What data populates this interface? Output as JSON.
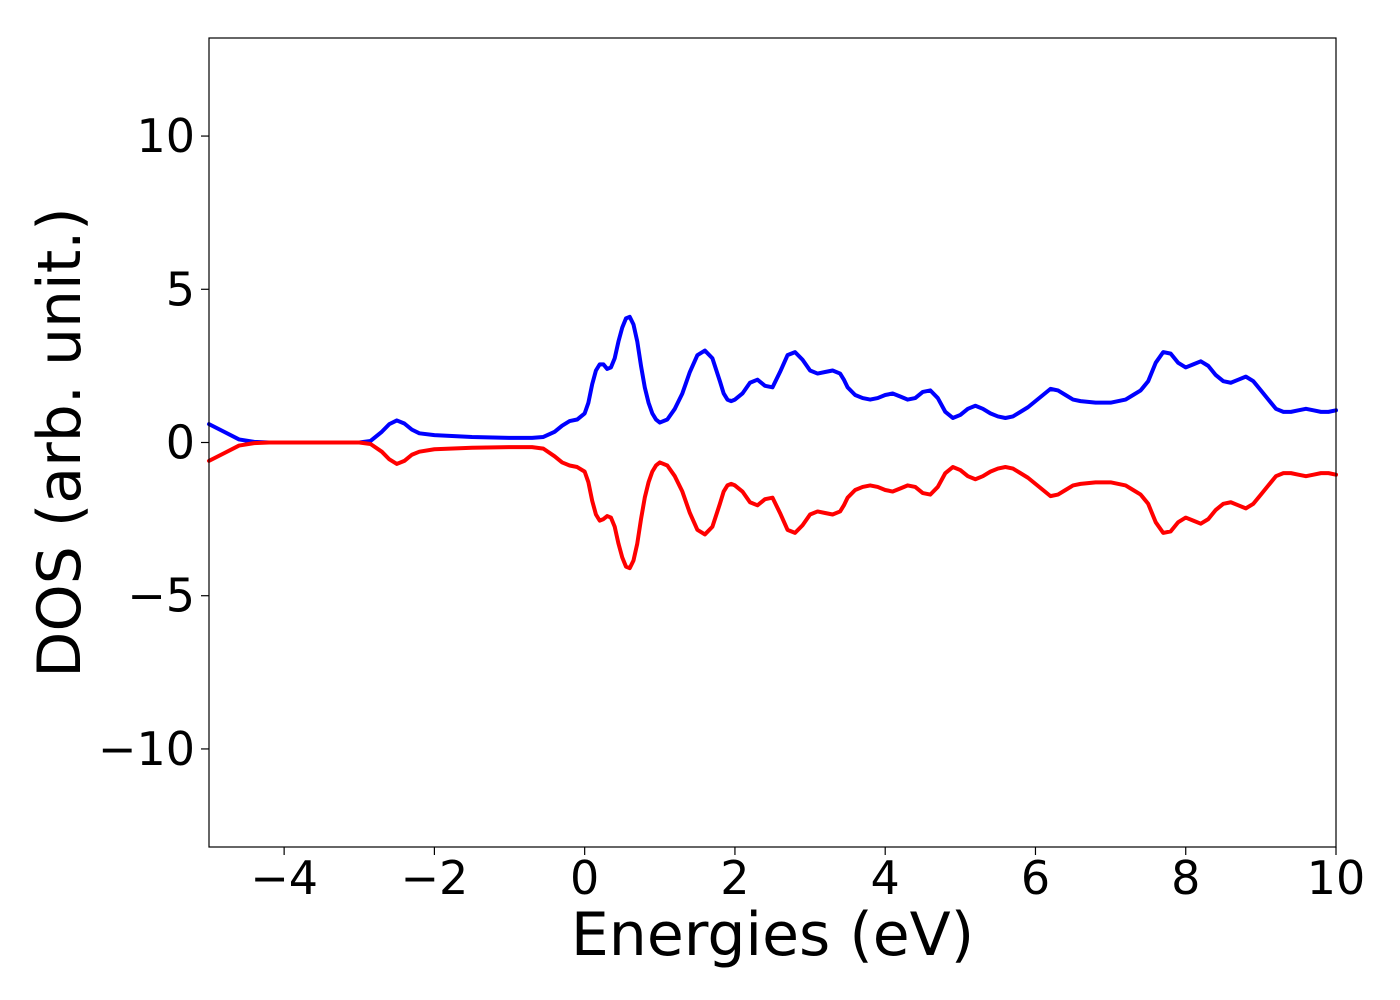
{
  "chart_data": {
    "type": "line",
    "title": "",
    "xlabel": "Energies (eV)",
    "ylabel": "DOS (arb. unit.)",
    "xlim": [
      -5,
      10
    ],
    "ylim": [
      -13.2,
      13.2
    ],
    "xticks": [
      -4,
      -2,
      0,
      2,
      4,
      6,
      8,
      10
    ],
    "xtick_labels": [
      "−4",
      "−2",
      "0",
      "2",
      "4",
      "6",
      "8",
      "10"
    ],
    "yticks": [
      -10,
      -5,
      0,
      5,
      10
    ],
    "ytick_labels": [
      "−10",
      "−5",
      "0",
      "5",
      "10"
    ],
    "grid": false,
    "legend": "none",
    "series": [
      {
        "color": "#0000ff",
        "x": [
          -5.0,
          -4.8,
          -4.6,
          -4.4,
          -4.2,
          -4.0,
          -3.5,
          -3.0,
          -2.85,
          -2.7,
          -2.6,
          -2.5,
          -2.4,
          -2.3,
          -2.2,
          -2.0,
          -1.5,
          -1.0,
          -0.7,
          -0.55,
          -0.4,
          -0.3,
          -0.2,
          -0.1,
          0.0,
          0.05,
          0.1,
          0.15,
          0.2,
          0.25,
          0.3,
          0.35,
          0.4,
          0.45,
          0.5,
          0.55,
          0.6,
          0.65,
          0.7,
          0.75,
          0.8,
          0.85,
          0.9,
          0.95,
          1.0,
          1.1,
          1.2,
          1.3,
          1.4,
          1.5,
          1.6,
          1.7,
          1.8,
          1.85,
          1.9,
          1.95,
          2.0,
          2.1,
          2.2,
          2.3,
          2.4,
          2.5,
          2.6,
          2.7,
          2.8,
          2.9,
          3.0,
          3.1,
          3.2,
          3.3,
          3.4,
          3.45,
          3.5,
          3.6,
          3.7,
          3.8,
          3.9,
          4.0,
          4.1,
          4.2,
          4.3,
          4.4,
          4.5,
          4.6,
          4.7,
          4.8,
          4.9,
          5.0,
          5.1,
          5.2,
          5.3,
          5.4,
          5.5,
          5.6,
          5.7,
          5.8,
          5.9,
          6.0,
          6.1,
          6.2,
          6.3,
          6.4,
          6.5,
          6.6,
          6.8,
          7.0,
          7.2,
          7.3,
          7.4,
          7.5,
          7.6,
          7.7,
          7.8,
          7.9,
          8.0,
          8.1,
          8.2,
          8.3,
          8.4,
          8.5,
          8.6,
          8.7,
          8.8,
          8.9,
          9.0,
          9.1,
          9.2,
          9.3,
          9.4,
          9.5,
          9.6,
          9.7,
          9.8,
          9.9,
          10.0
        ],
        "y": [
          0.6,
          0.35,
          0.1,
          0.02,
          0.0,
          0.0,
          0.0,
          0.0,
          0.05,
          0.35,
          0.6,
          0.72,
          0.62,
          0.42,
          0.3,
          0.24,
          0.18,
          0.15,
          0.15,
          0.18,
          0.35,
          0.55,
          0.7,
          0.75,
          0.95,
          1.3,
          1.9,
          2.35,
          2.55,
          2.55,
          2.4,
          2.45,
          2.75,
          3.3,
          3.75,
          4.05,
          4.1,
          3.85,
          3.3,
          2.5,
          1.8,
          1.3,
          0.95,
          0.75,
          0.65,
          0.75,
          1.1,
          1.6,
          2.3,
          2.85,
          3.0,
          2.75,
          2.0,
          1.6,
          1.4,
          1.35,
          1.4,
          1.6,
          1.95,
          2.05,
          1.85,
          1.8,
          2.3,
          2.85,
          2.95,
          2.7,
          2.35,
          2.25,
          2.3,
          2.35,
          2.25,
          2.05,
          1.8,
          1.55,
          1.45,
          1.4,
          1.45,
          1.55,
          1.6,
          1.5,
          1.4,
          1.45,
          1.65,
          1.7,
          1.45,
          1.0,
          0.8,
          0.9,
          1.1,
          1.2,
          1.1,
          0.95,
          0.85,
          0.8,
          0.85,
          1.0,
          1.15,
          1.35,
          1.55,
          1.75,
          1.7,
          1.55,
          1.4,
          1.35,
          1.3,
          1.3,
          1.4,
          1.55,
          1.7,
          2.0,
          2.6,
          2.95,
          2.9,
          2.6,
          2.45,
          2.55,
          2.65,
          2.5,
          2.2,
          2.0,
          1.95,
          2.05,
          2.15,
          2.0,
          1.7,
          1.4,
          1.1,
          1.0,
          1.0,
          1.05,
          1.1,
          1.05,
          1.0,
          1.0,
          1.05
        ]
      },
      {
        "color": "#ff0000",
        "x": [
          -5.0,
          -4.8,
          -4.6,
          -4.4,
          -4.2,
          -4.0,
          -3.5,
          -3.0,
          -2.85,
          -2.7,
          -2.6,
          -2.5,
          -2.4,
          -2.3,
          -2.2,
          -2.0,
          -1.5,
          -1.0,
          -0.7,
          -0.55,
          -0.4,
          -0.3,
          -0.2,
          -0.1,
          0.0,
          0.05,
          0.1,
          0.15,
          0.2,
          0.25,
          0.3,
          0.35,
          0.4,
          0.45,
          0.5,
          0.55,
          0.6,
          0.65,
          0.7,
          0.75,
          0.8,
          0.85,
          0.9,
          0.95,
          1.0,
          1.1,
          1.2,
          1.3,
          1.4,
          1.5,
          1.6,
          1.7,
          1.8,
          1.85,
          1.9,
          1.95,
          2.0,
          2.1,
          2.2,
          2.3,
          2.4,
          2.5,
          2.6,
          2.7,
          2.8,
          2.9,
          3.0,
          3.1,
          3.2,
          3.3,
          3.4,
          3.45,
          3.5,
          3.6,
          3.7,
          3.8,
          3.9,
          4.0,
          4.1,
          4.2,
          4.3,
          4.4,
          4.5,
          4.6,
          4.7,
          4.8,
          4.9,
          5.0,
          5.1,
          5.2,
          5.3,
          5.4,
          5.5,
          5.6,
          5.7,
          5.8,
          5.9,
          6.0,
          6.1,
          6.2,
          6.3,
          6.4,
          6.5,
          6.6,
          6.8,
          7.0,
          7.2,
          7.3,
          7.4,
          7.5,
          7.6,
          7.7,
          7.8,
          7.9,
          8.0,
          8.1,
          8.2,
          8.3,
          8.4,
          8.5,
          8.6,
          8.7,
          8.8,
          8.9,
          9.0,
          9.1,
          9.2,
          9.3,
          9.4,
          9.5,
          9.6,
          9.7,
          9.8,
          9.9,
          10.0
        ],
        "y": [
          -0.6,
          -0.35,
          -0.1,
          -0.02,
          0.0,
          0.0,
          0.0,
          0.0,
          -0.05,
          -0.3,
          -0.55,
          -0.7,
          -0.6,
          -0.4,
          -0.3,
          -0.22,
          -0.17,
          -0.15,
          -0.15,
          -0.2,
          -0.45,
          -0.65,
          -0.75,
          -0.8,
          -0.95,
          -1.3,
          -1.9,
          -2.35,
          -2.55,
          -2.5,
          -2.4,
          -2.45,
          -2.75,
          -3.3,
          -3.75,
          -4.05,
          -4.1,
          -3.85,
          -3.3,
          -2.5,
          -1.8,
          -1.3,
          -0.95,
          -0.75,
          -0.65,
          -0.75,
          -1.1,
          -1.6,
          -2.3,
          -2.85,
          -3.0,
          -2.75,
          -2.0,
          -1.6,
          -1.4,
          -1.35,
          -1.4,
          -1.6,
          -1.95,
          -2.05,
          -1.85,
          -1.8,
          -2.3,
          -2.85,
          -2.95,
          -2.7,
          -2.35,
          -2.25,
          -2.3,
          -2.35,
          -2.25,
          -2.05,
          -1.8,
          -1.55,
          -1.45,
          -1.4,
          -1.45,
          -1.55,
          -1.6,
          -1.5,
          -1.4,
          -1.45,
          -1.65,
          -1.7,
          -1.45,
          -1.0,
          -0.8,
          -0.9,
          -1.1,
          -1.2,
          -1.1,
          -0.95,
          -0.85,
          -0.8,
          -0.85,
          -1.0,
          -1.15,
          -1.35,
          -1.55,
          -1.75,
          -1.7,
          -1.55,
          -1.4,
          -1.35,
          -1.3,
          -1.3,
          -1.4,
          -1.55,
          -1.7,
          -2.0,
          -2.6,
          -2.95,
          -2.9,
          -2.6,
          -2.45,
          -2.55,
          -2.65,
          -2.5,
          -2.2,
          -2.0,
          -1.95,
          -2.05,
          -2.15,
          -2.0,
          -1.7,
          -1.4,
          -1.1,
          -1.0,
          -1.0,
          -1.05,
          -1.1,
          -1.05,
          -1.0,
          -1.0,
          -1.05
        ]
      }
    ]
  }
}
